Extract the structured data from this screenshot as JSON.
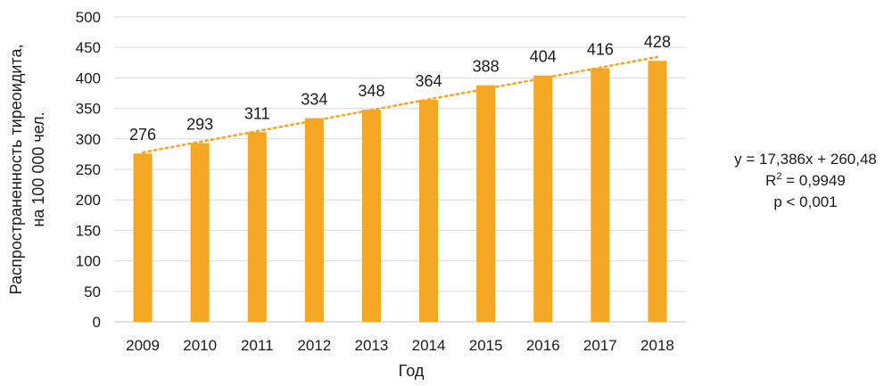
{
  "chart_data": {
    "type": "bar",
    "categories": [
      "2009",
      "2010",
      "2011",
      "2012",
      "2013",
      "2014",
      "2015",
      "2016",
      "2017",
      "2018"
    ],
    "values": [
      276,
      293,
      311,
      334,
      348,
      364,
      388,
      404,
      416,
      428
    ],
    "data_labels": [
      "276",
      "293",
      "311",
      "334",
      "348",
      "364",
      "388",
      "404",
      "416",
      "428"
    ],
    "xlabel": "Год",
    "ylabel_lines": [
      "Распространенность тиреоидита,",
      "на 100 000 чел."
    ],
    "ylim": [
      0,
      500
    ],
    "yticks": [
      "0",
      "50",
      "100",
      "150",
      "200",
      "250",
      "300",
      "350",
      "400",
      "450",
      "500"
    ],
    "grid": "horizontal",
    "trendline": {
      "type": "linear",
      "style": "dotted",
      "slope": 17.386,
      "intercept": 260.48,
      "equation_text": "y = 17,386x + 260,48",
      "r2_prefix": "R",
      "r2_sup": "2",
      "r2_value": " = 0,9949",
      "p_text": "p < 0,001"
    },
    "colors": {
      "bar": "#F5A623",
      "trendline": "#F5A623",
      "grid": "#d9d9d9",
      "axis": "#bfbfbf"
    }
  }
}
